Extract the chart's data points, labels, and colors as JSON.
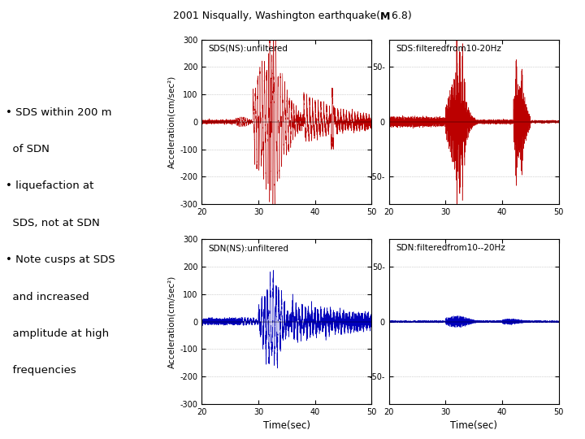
{
  "title_normal": "2001 Nisqually, Washington earthquake(",
  "title_bold": "M",
  "title_end": " 6.8)",
  "sds_unfiltered_label": "SDS(NS):unfiltered",
  "sds_filtered_label": "SDS:filteredfrom10-20Hz",
  "sdn_unfiltered_label": "SDN(NS):unfiltered",
  "sdn_filtered_label": "SDN:filteredfrom10--20Hz",
  "xlabel": "Time(sec)",
  "ylabel_top": "Acceleration(cm/sec²)",
  "ylabel_bot": "Acceleration(cm/sec²)",
  "xlim": [
    20,
    50
  ],
  "ylim_unfiltered": [
    -300,
    300
  ],
  "ylim_filtered": [
    -75,
    75
  ],
  "xticks": [
    20,
    30,
    40,
    50
  ],
  "yticks_unfiltered": [
    -300,
    -200,
    -100,
    0,
    100,
    200,
    300
  ],
  "yticks_filtered_labels": [
    "-50-",
    "0",
    "50-"
  ],
  "yticks_filtered_vals": [
    -50,
    0,
    50
  ],
  "color_sds": "#bb0000",
  "color_sdn": "#0000bb",
  "background_color": "#ffffff",
  "text_color": "#000000",
  "bullet_lines": [
    "• SDS within 200 m",
    "  of SDN",
    "• liquefaction at",
    "  SDS, not at SDN",
    "• Note cusps at SDS",
    "  and increased",
    "  amplitude at high",
    "  frequencies"
  ]
}
